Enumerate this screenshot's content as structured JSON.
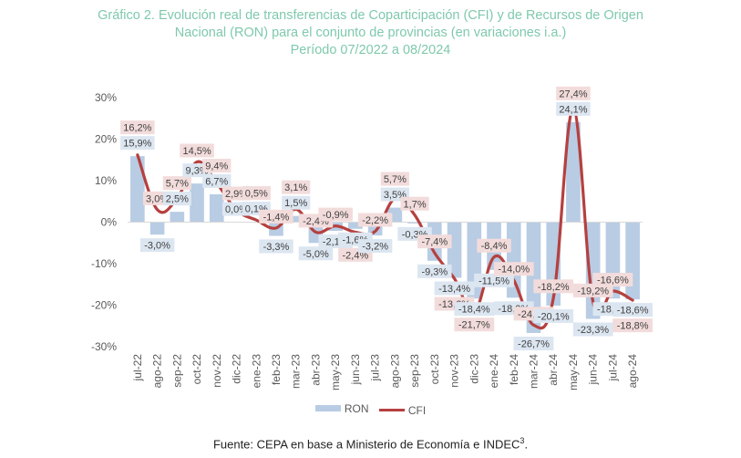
{
  "title_lines": [
    "Gráfico 2. Evolución real de transferencias de Coparticipación (CFI) y de Recursos de Origen",
    "Nacional (RON) para el conjunto de provincias (en variaciones i.a.)",
    "Período 07/2022 a 08/2024"
  ],
  "legend": {
    "ron": "RON",
    "cfi": "CFI"
  },
  "source": "Fuente: CEPA en base a Ministerio de Economía e INDEC",
  "source_sup": "3",
  "source_end": ".",
  "colors": {
    "title": "#7fc9ad",
    "ron_bar": "#b8cce4",
    "cfi_line": "#b5403f",
    "ron_label_bg": "#dce6f1",
    "cfi_label_bg": "#f2dcdb"
  },
  "chart_data": {
    "type": "bar+line",
    "title": "Gráfico 2. Evolución real de transferencias de Coparticipación (CFI) y de Recursos de Origen Nacional (RON) para el conjunto de provincias (en variaciones i.a.) — Período 07/2022 a 08/2024",
    "xlabel": "",
    "ylabel": "",
    "ylim": [
      -30,
      30
    ],
    "yticks": [
      -30,
      -20,
      -10,
      0,
      10,
      20,
      30
    ],
    "ytick_labels": [
      "-30%",
      "-20%",
      "-10%",
      "0%",
      "10%",
      "20%",
      "30%"
    ],
    "grid": false,
    "legend_position": "bottom",
    "categories": [
      "jul-22",
      "ago-22",
      "sep-22",
      "oct-22",
      "nov-22",
      "dic-22",
      "ene-23",
      "feb-23",
      "mar-23",
      "abr-23",
      "may-23",
      "jun-23",
      "jul-23",
      "ago-23",
      "sep-23",
      "oct-23",
      "nov-23",
      "dic-23",
      "ene-24",
      "feb-24",
      "mar-24",
      "abr-24",
      "may-24",
      "jun-24",
      "jul-24",
      "ago-24"
    ],
    "series": [
      {
        "name": "RON",
        "type": "bar",
        "values": [
          15.9,
          -3.0,
          2.5,
          9.3,
          6.7,
          0.0,
          0.1,
          -3.3,
          1.5,
          -5.0,
          -2.1,
          -1.6,
          -3.2,
          3.5,
          -0.3,
          -9.3,
          -13.4,
          -18.4,
          -11.5,
          -18.2,
          -26.7,
          -20.1,
          24.1,
          -23.3,
          -18.4,
          -18.6
        ],
        "labels": [
          "15,9%",
          "-3,0%",
          "2,5%",
          "9,3%",
          "6,7%",
          "0,0%",
          "0,1%",
          "-3,3%",
          "1,5%",
          "-5,0%",
          "-2,1%",
          "-1,6%",
          "-3,2%",
          "3,5%",
          "-0,3%",
          "-9,3%",
          "-13,4%",
          "-18,4%",
          "-11,5%",
          "-18,2%",
          "-26,7%",
          "-20,1%",
          "24,1%",
          "-23,3%",
          "-18,4%",
          "-18,6%"
        ]
      },
      {
        "name": "CFI",
        "type": "line",
        "values": [
          16.2,
          3.0,
          5.7,
          14.5,
          9.4,
          2.9,
          0.5,
          -1.4,
          3.1,
          -2.4,
          -0.9,
          -2.4,
          -2.2,
          5.7,
          1.7,
          -7.4,
          -13.6,
          -21.7,
          -8.4,
          -14.0,
          -24.8,
          -18.2,
          27.4,
          -19.2,
          -16.6,
          -18.8
        ],
        "labels": [
          "16,2%",
          "3,0%",
          "5,7%",
          "14,5%",
          "9,4%",
          "2,9%",
          "0,5%",
          "-1,4%",
          "3,1%",
          "-2,4%",
          "-0,9%",
          "-2,4%",
          "-2,2%",
          "5,7%",
          "1,7%",
          "-7,4%",
          "-13,6%",
          "-21,7%",
          "-8,4%",
          "-14,0%",
          "-24,8%",
          "-18,2%",
          "27,4%",
          "-19,2%",
          "-16,6%",
          "-18,8%"
        ]
      }
    ]
  }
}
